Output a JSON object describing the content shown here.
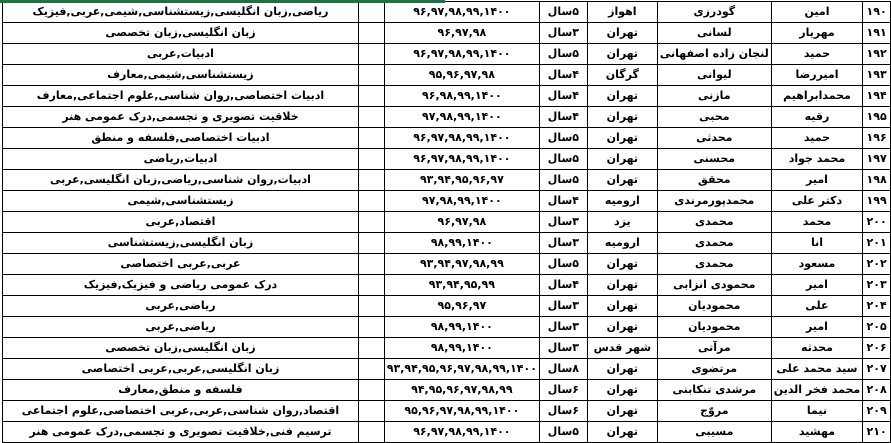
{
  "colors": {
    "top_accent_green": "#1E7145",
    "grid_line": "#000000",
    "text": "#000000",
    "background": "#FFFFFF"
  },
  "table": {
    "direction": "rtl",
    "column_names": [
      "row-number",
      "first-name",
      "last-name",
      "city",
      "years-count",
      "active-years",
      "spacer",
      "subjects"
    ],
    "rows": [
      {
        "num": "۱۹۰",
        "first_name": "امین",
        "last_name": "گودرزی",
        "city": "اهواز",
        "years_count": "۵سال",
        "years": "۹۶,۹۷,۹۸,۹۹,۱۴۰۰",
        "subjects": "ریاضی,زبان انگلیسی,زیستشناسی,شیمی,عربی,فیزیک"
      },
      {
        "num": "۱۹۱",
        "first_name": "مهریار",
        "last_name": "لسانی",
        "city": "تهران",
        "years_count": "۳سال",
        "years": "۹۶,۹۷,۹۸",
        "subjects": "زبان انگلیسی,زبان تخصصی"
      },
      {
        "num": "۱۹۲",
        "first_name": "حمید",
        "last_name": "لنجان زاده اصفهانی",
        "city": "تهران",
        "years_count": "۵سال",
        "years": "۹۶,۹۷,۹۸,۹۹,۱۴۰۰",
        "subjects": "ادبیات,عربی"
      },
      {
        "num": "۱۹۳",
        "first_name": "امیررضا",
        "last_name": "لیوانی",
        "city": "گرگان",
        "years_count": "۴سال",
        "years": "۹۵,۹۶,۹۷,۹۸",
        "subjects": "زیستشناسی,شیمی,معارف"
      },
      {
        "num": "۱۹۴",
        "first_name": "محمدابراهیم",
        "last_name": "مازنی",
        "city": "تهران",
        "years_count": "۴سال",
        "years": "۹۶,۹۸,۹۹,۱۴۰۰",
        "subjects": "ادبیات اختصاصی,روان شناسی,علوم اجتماعی,معارف"
      },
      {
        "num": "۱۹۵",
        "first_name": "رقیه",
        "last_name": "محبی",
        "city": "تهران",
        "years_count": "۴سال",
        "years": "۹۷,۹۸,۹۹,۱۴۰۰",
        "subjects": "خلاقیت تصویری و تجسمی,درک عمومی هنر"
      },
      {
        "num": "۱۹۶",
        "first_name": "حمید",
        "last_name": "محدثی",
        "city": "تهران",
        "years_count": "۵سال",
        "years": "۹۶,۹۷,۹۸,۹۹,۱۴۰۰",
        "subjects": "ادبیات اختصاصی,فلسفه و منطق"
      },
      {
        "num": "۱۹۷",
        "first_name": "محمد جواد",
        "last_name": "محسنی",
        "city": "تهران",
        "years_count": "۵سال",
        "years": "۹۶,۹۷,۹۸,۹۹,۱۴۰۰",
        "subjects": "ادبیات,ریاضی"
      },
      {
        "num": "۱۹۸",
        "first_name": "امیر",
        "last_name": "محقق",
        "city": "تهران",
        "years_count": "۵سال",
        "years": "۹۳,۹۴,۹۵,۹۶,۹۷",
        "subjects": "ادبیات,روان شناسی,ریاضی,زبان انگلیسی,عربی"
      },
      {
        "num": "۱۹۹",
        "first_name": "دکتر علی",
        "last_name": "محمدپورمرندی",
        "city": "ارومیه",
        "years_count": "۴سال",
        "years": "۹۷,۹۸,۹۹,۱۴۰۰",
        "subjects": "زیستشناسی,شیمی"
      },
      {
        "num": "۲۰۰",
        "first_name": "محمد",
        "last_name": "محمدی",
        "city": "یزد",
        "years_count": "۳سال",
        "years": "۹۶,۹۷,۹۸",
        "subjects": "اقتصاد,عربی"
      },
      {
        "num": "۲۰۱",
        "first_name": "انا",
        "last_name": "محمدی",
        "city": "ارومیه",
        "years_count": "۳سال",
        "years": "۹۸,۹۹,۱۴۰۰",
        "subjects": "زبان انگلیسی,زیستشناسی"
      },
      {
        "num": "۲۰۲",
        "first_name": "مسعود",
        "last_name": "محمدی",
        "city": "تهران",
        "years_count": "۵سال",
        "years": "۹۳,۹۴,۹۷,۹۸,۹۹",
        "subjects": "عربی,عربی اختصاصی"
      },
      {
        "num": "۲۰۳",
        "first_name": "امیر",
        "last_name": "محمودی انزابی",
        "city": "تهران",
        "years_count": "۴سال",
        "years": "۹۳,۹۴,۹۵,۹۹",
        "subjects": "درک عمومی ریاضی و فیزیک,فیزیک"
      },
      {
        "num": "۲۰۴",
        "first_name": "علی",
        "last_name": "محمودیان",
        "city": "تهران",
        "years_count": "۳سال",
        "years": "۹۵,۹۶,۹۷",
        "subjects": "ریاضی,عربی"
      },
      {
        "num": "۲۰۵",
        "first_name": "امیر",
        "last_name": "محمودیان",
        "city": "تهران",
        "years_count": "۳سال",
        "years": "۹۸,۹۹,۱۴۰۰",
        "subjects": "ریاضی,عربی"
      },
      {
        "num": "۲۰۶",
        "first_name": "محدثه",
        "last_name": "مرآتی",
        "city": "شهر قدس",
        "years_count": "۳سال",
        "years": "۹۸,۹۹,۱۴۰۰",
        "subjects": "زبان انگلیسی,زبان تخصصی"
      },
      {
        "num": "۲۰۷",
        "first_name": "سید محمد علی",
        "last_name": "مرتضوی",
        "city": "تهران",
        "years_count": "۸سال",
        "years": "۹۳,۹۴,۹۵,۹۶,۹۷,۹۸,۹۹,۱۴۰۰",
        "subjects": "زبان انگلیسی,عربی,عربی اختصاصی"
      },
      {
        "num": "۲۰۸",
        "first_name": "محمد فخر الدین",
        "last_name": "مرشدی تنکابنی",
        "city": "تهران",
        "years_count": "۶سال",
        "years": "۹۴,۹۵,۹۶,۹۷,۹۸,۹۹",
        "subjects": "فلسفه و منطق,معارف"
      },
      {
        "num": "۲۰۹",
        "first_name": "نیما",
        "last_name": "مروّج",
        "city": "تهران",
        "years_count": "۶سال",
        "years": "۹۵,۹۶,۹۷,۹۸,۹۹,۱۴۰۰",
        "subjects": "اقتصاد,روان شناسی,عربی,عربی اختصاصی,علوم اجتماعی"
      },
      {
        "num": "۲۱۰",
        "first_name": "مهشید",
        "last_name": "مسیبی",
        "city": "تهران",
        "years_count": "۵سال",
        "years": "۹۶,۹۷,۹۸,۹۹,۱۴۰۰",
        "subjects": "ترسیم فنی,خلاقیت تصویری و تجسمی,درک عمومی هنر"
      }
    ]
  }
}
